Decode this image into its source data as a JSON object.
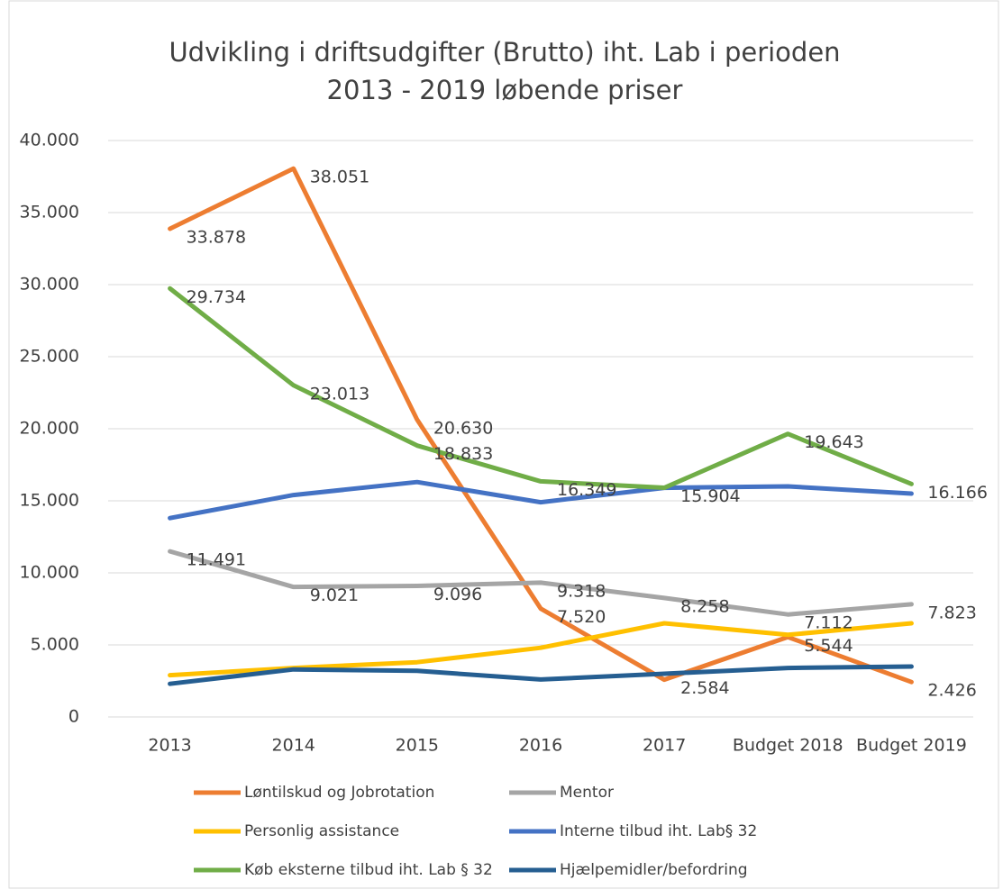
{
  "chart_data": {
    "type": "line",
    "title": [
      "Udvikling i driftsudgifter (Brutto)  iht. Lab i perioden",
      "2013 - 2019 løbende priser"
    ],
    "categories": [
      "2013",
      "2014",
      "2015",
      "2016",
      "2017",
      "Budget 2018",
      "Budget 2019"
    ],
    "ylim": [
      0,
      40000
    ],
    "yticks": [
      0,
      {
        "value": 5000,
        "label": "5.000"
      },
      {
        "value": 10000,
        "label": "10.000"
      },
      {
        "value": 15000,
        "label": "15.000"
      },
      {
        "value": 20000,
        "label": "20.000"
      },
      {
        "value": 25000,
        "label": "25.000"
      },
      {
        "value": 30000,
        "label": "30.000"
      },
      {
        "value": 35000,
        "label": "35.000"
      },
      {
        "value": 40000,
        "label": "40.000"
      }
    ],
    "grid": true,
    "legend": "bottom",
    "series": [
      {
        "name": "Løntilskud og Jobrotation",
        "color": "#ED7D31",
        "values": [
          33878,
          38051,
          20630,
          7520,
          2584,
          5544,
          2426
        ],
        "value_labels": [
          "33.878",
          "38.051",
          "20.630",
          "7.520",
          "2.584",
          "5.544",
          "2.426"
        ]
      },
      {
        "name": "Mentor",
        "color": "#A5A5A5",
        "values": [
          11491,
          9021,
          9096,
          9318,
          8258,
          7112,
          7823
        ],
        "value_labels": [
          "11.491",
          "9.021",
          "9.096",
          "9.318",
          "8.258",
          "7.112",
          "7.823"
        ]
      },
      {
        "name": "Personlig assistance",
        "color": "#FFC000",
        "values": [
          2900,
          3400,
          3800,
          4800,
          6500,
          5700,
          6500
        ]
      },
      {
        "name": "Interne tilbud iht. Lab§ 32",
        "color": "#4472C4",
        "values": [
          13800,
          15400,
          16300,
          14900,
          15900,
          16000,
          15500
        ]
      },
      {
        "name": "Køb eksterne tilbud iht. Lab § 32",
        "color": "#70AD47",
        "values": [
          29734,
          23013,
          18833,
          16349,
          15904,
          19643,
          16166
        ],
        "value_labels": [
          "29.734",
          "23.013",
          "18.833",
          "16.349",
          "15.904",
          "19.643",
          "16.166"
        ]
      },
      {
        "name": "Hjælpemidler/befordring",
        "color": "#255E91",
        "values": [
          2300,
          3300,
          3200,
          2600,
          3000,
          3400,
          3500
        ]
      }
    ]
  }
}
